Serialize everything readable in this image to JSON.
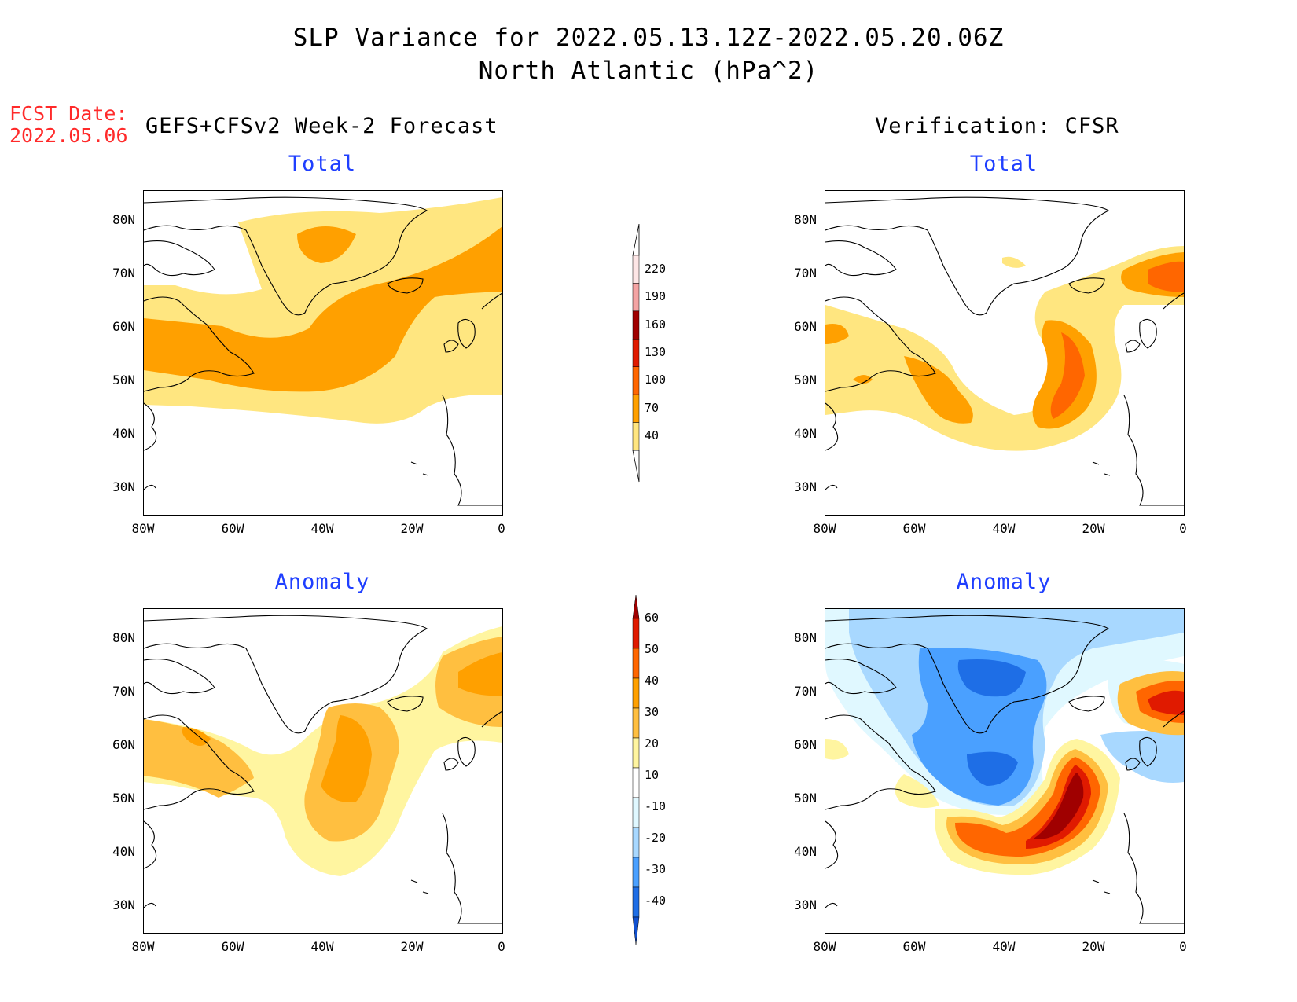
{
  "title": {
    "line1": "SLP Variance for 2022.05.13.12Z-2022.05.20.06Z",
    "line2": "North Atlantic (hPa^2)"
  },
  "fcst_date": {
    "label": "FCST Date:",
    "value": "2022.05.06"
  },
  "column_headers": {
    "left": "GEFS+CFSv2 Week-2 Forecast",
    "right": "Verification: CFSR"
  },
  "panels": [
    {
      "id": "forecast-total",
      "title": "Total"
    },
    {
      "id": "verification-total",
      "title": "Total"
    },
    {
      "id": "forecast-anomaly",
      "title": "Anomaly"
    },
    {
      "id": "verification-anomaly",
      "title": "Anomaly"
    }
  ],
  "axes": {
    "x_ticks": [
      "80W",
      "60W",
      "40W",
      "20W",
      "0"
    ],
    "y_ticks": [
      "80N",
      "70N",
      "60N",
      "50N",
      "40N",
      "30N"
    ],
    "lon_range": [
      -80,
      0
    ],
    "lat_range": [
      25,
      85
    ]
  },
  "colorbars": {
    "total": {
      "labels": [
        "220",
        "190",
        "160",
        "130",
        "100",
        "70",
        "40"
      ],
      "colors": [
        "#fde6e6",
        "#f4a4a4",
        "#a00000",
        "#e01a00",
        "#ff6600",
        "#ffa000",
        "#ffe680"
      ]
    },
    "anomaly": {
      "labels": [
        "60",
        "50",
        "40",
        "30",
        "20",
        "10",
        "-10",
        "-20",
        "-30",
        "-40"
      ],
      "colors": [
        "#a00000",
        "#e01a00",
        "#ff6600",
        "#ffa000",
        "#ffbf40",
        "#fff5a0",
        "#ffffff",
        "#e0f8ff",
        "#a8d8ff",
        "#4aa0ff",
        "#1e6ee6",
        "#1050d0"
      ]
    }
  },
  "chart_data": {
    "type": "heatmap",
    "title": "SLP Variance for 2022.05.13.12Z-2022.05.20.06Z",
    "subtitle": "North Atlantic (hPa^2)",
    "xlim": [
      -80,
      0
    ],
    "ylim": [
      25,
      85
    ],
    "total_levels": [
      40,
      70,
      100,
      130,
      160,
      190,
      220
    ],
    "anomaly_levels": [
      -40,
      -30,
      -20,
      -10,
      10,
      20,
      30,
      40,
      50,
      60
    ]
  }
}
